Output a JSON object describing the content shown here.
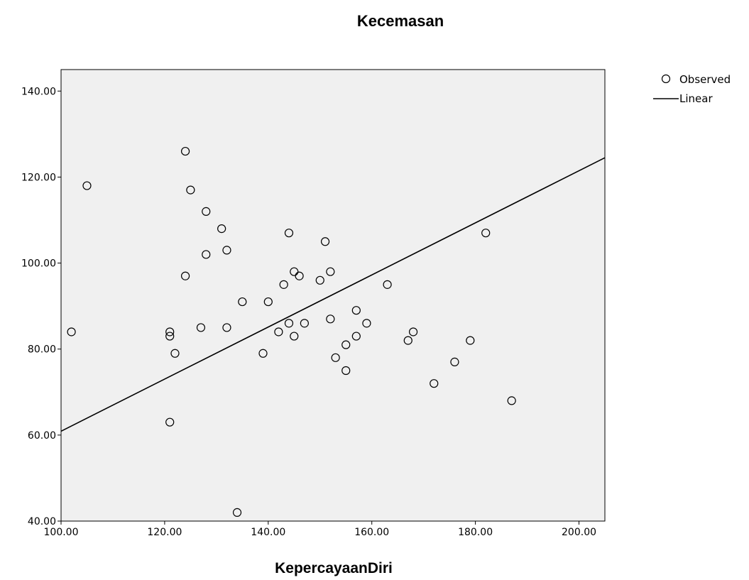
{
  "chart_data": {
    "type": "scatter",
    "title": "Kecemasan",
    "xlabel": "KepercayaanDiri",
    "ylabel": "",
    "xlim": [
      100,
      205
    ],
    "ylim": [
      40,
      145
    ],
    "x_ticks": [
      100,
      120,
      140,
      160,
      180,
      200
    ],
    "y_ticks": [
      40,
      60,
      80,
      100,
      120,
      140
    ],
    "x_tick_labels": [
      "100.00",
      "120.00",
      "140.00",
      "160.00",
      "180.00",
      "200.00"
    ],
    "y_tick_labels": [
      "40.00",
      "60.00",
      "80.00",
      "100.00",
      "120.00",
      "140.00"
    ],
    "grid": false,
    "legend_position": "top-right",
    "legend": [
      {
        "label": "Observed",
        "marker": "circle"
      },
      {
        "label": "Linear",
        "marker": "line"
      }
    ],
    "series": [
      {
        "name": "Observed",
        "kind": "points",
        "points": [
          {
            "x": 102,
            "y": 84
          },
          {
            "x": 105,
            "y": 118
          },
          {
            "x": 121,
            "y": 84
          },
          {
            "x": 121,
            "y": 83
          },
          {
            "x": 121,
            "y": 63
          },
          {
            "x": 122,
            "y": 79
          },
          {
            "x": 124,
            "y": 126
          },
          {
            "x": 124,
            "y": 97
          },
          {
            "x": 125,
            "y": 117
          },
          {
            "x": 127,
            "y": 85
          },
          {
            "x": 128,
            "y": 112
          },
          {
            "x": 128,
            "y": 102
          },
          {
            "x": 131,
            "y": 108
          },
          {
            "x": 132,
            "y": 103
          },
          {
            "x": 132,
            "y": 85
          },
          {
            "x": 134,
            "y": 42
          },
          {
            "x": 135,
            "y": 91
          },
          {
            "x": 139,
            "y": 79
          },
          {
            "x": 140,
            "y": 91
          },
          {
            "x": 142,
            "y": 84
          },
          {
            "x": 143,
            "y": 95
          },
          {
            "x": 144,
            "y": 107
          },
          {
            "x": 144,
            "y": 86
          },
          {
            "x": 145,
            "y": 98
          },
          {
            "x": 145,
            "y": 83
          },
          {
            "x": 146,
            "y": 97
          },
          {
            "x": 147,
            "y": 86
          },
          {
            "x": 150,
            "y": 96
          },
          {
            "x": 151,
            "y": 105
          },
          {
            "x": 152,
            "y": 98
          },
          {
            "x": 152,
            "y": 87
          },
          {
            "x": 153,
            "y": 78
          },
          {
            "x": 155,
            "y": 81
          },
          {
            "x": 155,
            "y": 75
          },
          {
            "x": 157,
            "y": 89
          },
          {
            "x": 157,
            "y": 83
          },
          {
            "x": 159,
            "y": 86
          },
          {
            "x": 163,
            "y": 95
          },
          {
            "x": 167,
            "y": 82
          },
          {
            "x": 168,
            "y": 84
          },
          {
            "x": 172,
            "y": 72
          },
          {
            "x": 176,
            "y": 77
          },
          {
            "x": 179,
            "y": 82
          },
          {
            "x": 182,
            "y": 107
          },
          {
            "x": 187,
            "y": 68
          }
        ]
      },
      {
        "name": "Linear",
        "kind": "line",
        "points": [
          {
            "x": 100,
            "y": 60.9
          },
          {
            "x": 205,
            "y": 124.5
          }
        ]
      }
    ],
    "colors": {
      "plot_background": "#f0f0f0",
      "frame": "#000000",
      "marker_stroke": "#000000",
      "line": "#000000"
    }
  }
}
